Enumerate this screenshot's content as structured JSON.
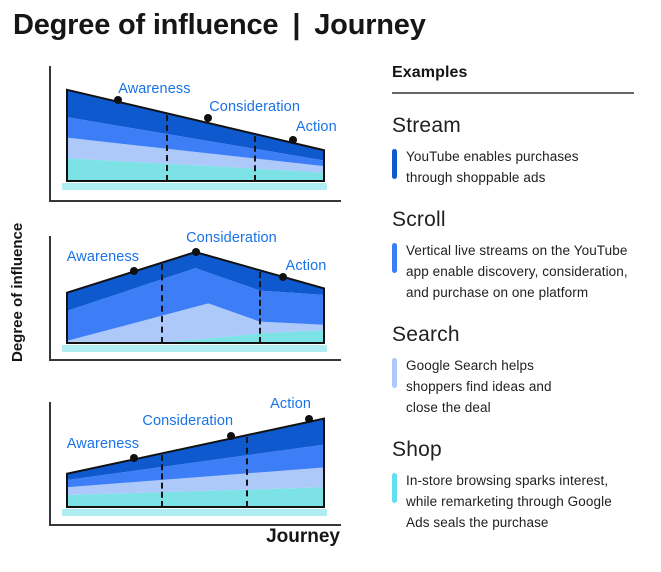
{
  "title": {
    "left": "Degree of influence",
    "separator": "|",
    "right": "Journey"
  },
  "y_axis_label": "Degree of influence",
  "x_axis_label": "Journey",
  "colors": {
    "stream": "#0f59cf",
    "scroll": "#3d7ef7",
    "search": "#adc9f9",
    "shop": "#7ce2e6",
    "shop_legend": "#63dff2",
    "shadow": "#aeeef2",
    "label_blue": "#1a73e8",
    "outline": "#121212",
    "axis": "#35373a"
  },
  "examples_panel": {
    "heading": "Examples",
    "sections": [
      {
        "name": "Stream",
        "bar_color": "#0f59cf",
        "lines": [
          "YouTube enables purchases",
          "through shoppable ads"
        ]
      },
      {
        "name": "Scroll",
        "bar_color": "#3d7ef7",
        "lines": [
          "Vertical live streams on the YouTube",
          "app enable discovery, consideration,",
          "and purchase on one platform"
        ]
      },
      {
        "name": "Search",
        "bar_color": "#adc9f9",
        "lines": [
          "Google Search helps",
          "shoppers find ideas and",
          "close the deal"
        ]
      },
      {
        "name": "Shop",
        "bar_color": "#63dff2",
        "lines": [
          "In-store browsing sparks interest,",
          "while remarketing through Google",
          "Ads seals the purchase"
        ]
      }
    ]
  },
  "chart_data": {
    "type": "area",
    "subtype": "stacked-area-triptych",
    "xlabel": "Journey",
    "ylabel": "Degree of influence",
    "x_range": [
      0,
      100
    ],
    "y_range": [
      0,
      100
    ],
    "grid": false,
    "layers_order": [
      "shop",
      "search",
      "scroll",
      "stream"
    ],
    "layer_examples": {
      "stream": "Stream",
      "scroll": "Scroll",
      "search": "Search",
      "shop": "Shop"
    },
    "charts": [
      {
        "name": "declining",
        "stages": [
          {
            "label": "Awareness",
            "dot": [
              20,
              71
            ],
            "label_pos": [
              34,
              81
            ]
          },
          {
            "label": "Consideration",
            "dot": [
              55,
              55
            ],
            "label_pos": [
              73,
              65
            ]
          },
          {
            "label": "Action",
            "dot": [
              88,
              36
            ],
            "label_pos": [
              97,
              47
            ]
          }
        ],
        "dashed_x": [
          39,
          73
        ],
        "layers": {
          "shop_top": [
            [
              0,
              20
            ],
            [
              100,
              7.5
            ]
          ],
          "search_top": [
            [
              0,
              38
            ],
            [
              100,
              13
            ]
          ],
          "scroll_top": [
            [
              0,
              56
            ],
            [
              100,
              18
            ]
          ],
          "stream_top": [
            [
              0,
              80
            ],
            [
              100,
              27
            ]
          ]
        }
      },
      {
        "name": "peak-consideration",
        "stages": [
          {
            "label": "Awareness",
            "dot": [
              26,
              67
            ],
            "label_pos": [
              14,
              80
            ]
          },
          {
            "label": "Consideration",
            "dot": [
              50,
              85
            ],
            "label_pos": [
              64,
              98
            ]
          },
          {
            "label": "Action",
            "dot": [
              84,
              62
            ],
            "label_pos": [
              93,
              72
            ]
          }
        ],
        "dashed_x": [
          37,
          75
        ],
        "layers": {
          "shop_top": [
            [
              0,
              1
            ],
            [
              40,
              1
            ],
            [
              75,
              9
            ],
            [
              100,
              12
            ]
          ],
          "search_top": [
            [
              0,
              2
            ],
            [
              55,
              37
            ],
            [
              75,
              20
            ],
            [
              100,
              17
            ]
          ],
          "scroll_top": [
            [
              0,
              30
            ],
            [
              50,
              70
            ],
            [
              75,
              49
            ],
            [
              100,
              45
            ]
          ],
          "stream_top": [
            [
              0,
              47
            ],
            [
              50,
              85
            ],
            [
              100,
              51
            ]
          ]
        }
      },
      {
        "name": "rising",
        "stages": [
          {
            "label": "Awareness",
            "dot": [
              26,
              47
            ],
            "label_pos": [
              14,
              61
            ]
          },
          {
            "label": "Consideration",
            "dot": [
              64,
              68
            ],
            "label_pos": [
              47,
              83
            ]
          },
          {
            "label": "Action",
            "dot": [
              94,
              85
            ],
            "label_pos": [
              87,
              99
            ]
          }
        ],
        "dashed_x": [
          37,
          70
        ],
        "layers": {
          "shop_top": [
            [
              0,
              11.5
            ],
            [
              100,
              19
            ]
          ],
          "search_top": [
            [
              0,
              19
            ],
            [
              100,
              38
            ]
          ],
          "scroll_top": [
            [
              0,
              26
            ],
            [
              100,
              60
            ]
          ],
          "stream_top": [
            [
              0,
              32
            ],
            [
              100,
              85
            ]
          ]
        }
      }
    ]
  }
}
